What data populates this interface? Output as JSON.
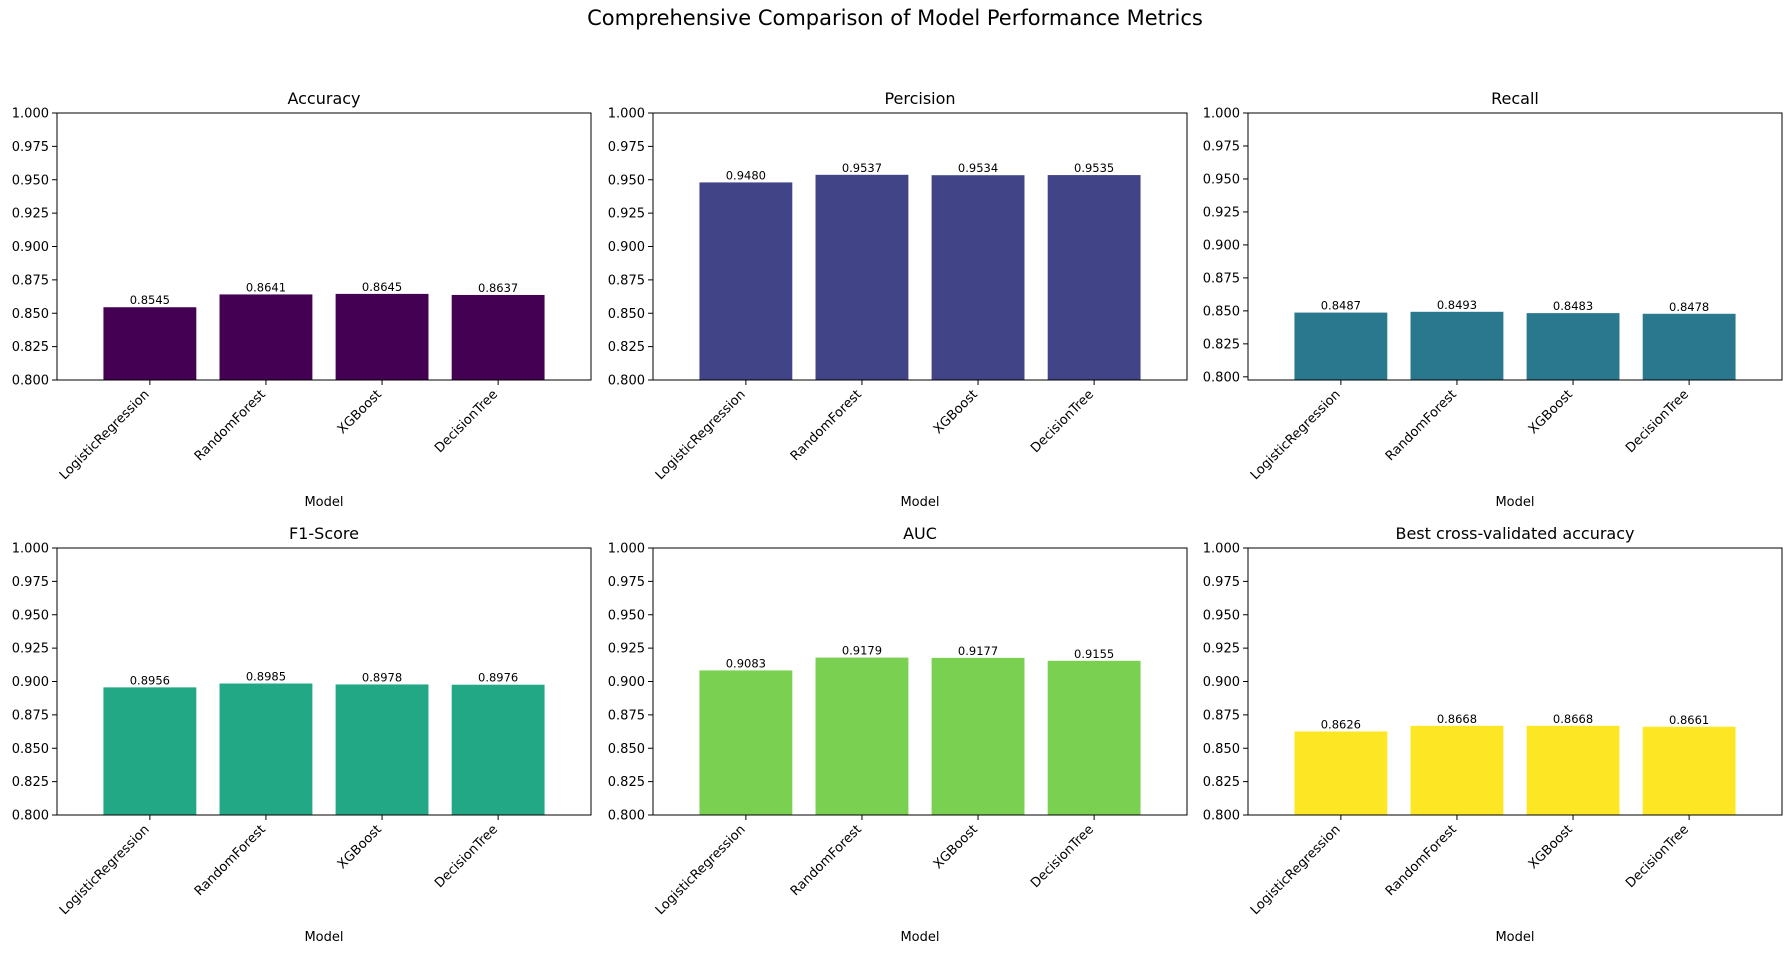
{
  "figure": {
    "title": "Comprehensive Comparison of Model Performance Metrics"
  },
  "chart_data": [
    {
      "type": "bar",
      "title": "Accuracy",
      "xlabel": "Model",
      "ylabel": "",
      "categories": [
        "LogisticRegression",
        "RandomForest",
        "XGBoost",
        "DecisionTree"
      ],
      "values": [
        0.8545,
        0.8641,
        0.8645,
        0.8637
      ],
      "value_labels": [
        "0.8545",
        "0.8641",
        "0.8645",
        "0.8637"
      ],
      "ylim": [
        0.8,
        1.0
      ],
      "yticks": [
        0.8,
        0.825,
        0.85,
        0.875,
        0.9,
        0.925,
        0.95,
        0.975,
        1.0
      ],
      "ytick_labels": [
        "0.800",
        "0.825",
        "0.850",
        "0.875",
        "0.900",
        "0.925",
        "0.950",
        "0.975",
        "1.000"
      ],
      "color": "#440154",
      "grid": false
    },
    {
      "type": "bar",
      "title": "Percision",
      "xlabel": "Model",
      "ylabel": "",
      "categories": [
        "LogisticRegression",
        "RandomForest",
        "XGBoost",
        "DecisionTree"
      ],
      "values": [
        0.948,
        0.9537,
        0.9534,
        0.9535
      ],
      "value_labels": [
        "0.9480",
        "0.9537",
        "0.9534",
        "0.9535"
      ],
      "ylim": [
        0.8,
        1.0
      ],
      "yticks": [
        0.8,
        0.825,
        0.85,
        0.875,
        0.9,
        0.925,
        0.95,
        0.975,
        1.0
      ],
      "ytick_labels": [
        "0.800",
        "0.825",
        "0.850",
        "0.875",
        "0.900",
        "0.925",
        "0.950",
        "0.975",
        "1.000"
      ],
      "color": "#414487",
      "grid": false
    },
    {
      "type": "bar",
      "title": "Recall",
      "xlabel": "Model",
      "ylabel": "",
      "categories": [
        "LogisticRegression",
        "RandomForest",
        "XGBoost",
        "DecisionTree"
      ],
      "values": [
        0.8487,
        0.8493,
        0.8483,
        0.8478
      ],
      "value_labels": [
        "0.8487",
        "0.8493",
        "0.8483",
        "0.8478"
      ],
      "ylim": [
        0.7976,
        1.0
      ],
      "yticks": [
        0.8,
        0.825,
        0.85,
        0.875,
        0.9,
        0.925,
        0.95,
        0.975,
        1.0
      ],
      "ytick_labels": [
        "0.800",
        "0.825",
        "0.850",
        "0.875",
        "0.900",
        "0.925",
        "0.950",
        "0.975",
        "1.000"
      ],
      "color": "#2a788e",
      "grid": false
    },
    {
      "type": "bar",
      "title": "F1-Score",
      "xlabel": "Model",
      "ylabel": "",
      "categories": [
        "LogisticRegression",
        "RandomForest",
        "XGBoost",
        "DecisionTree"
      ],
      "values": [
        0.8956,
        0.8985,
        0.8978,
        0.8976
      ],
      "value_labels": [
        "0.8956",
        "0.8985",
        "0.8978",
        "0.8976"
      ],
      "ylim": [
        0.8,
        1.0
      ],
      "yticks": [
        0.8,
        0.825,
        0.85,
        0.875,
        0.9,
        0.925,
        0.95,
        0.975,
        1.0
      ],
      "ytick_labels": [
        "0.800",
        "0.825",
        "0.850",
        "0.875",
        "0.900",
        "0.925",
        "0.950",
        "0.975",
        "1.000"
      ],
      "color": "#22a884",
      "grid": false
    },
    {
      "type": "bar",
      "title": "AUC",
      "xlabel": "Model",
      "ylabel": "",
      "categories": [
        "LogisticRegression",
        "RandomForest",
        "XGBoost",
        "DecisionTree"
      ],
      "values": [
        0.9083,
        0.9179,
        0.9177,
        0.9155
      ],
      "value_labels": [
        "0.9083",
        "0.9179",
        "0.9177",
        "0.9155"
      ],
      "ylim": [
        0.8,
        1.0
      ],
      "yticks": [
        0.8,
        0.825,
        0.85,
        0.875,
        0.9,
        0.925,
        0.95,
        0.975,
        1.0
      ],
      "ytick_labels": [
        "0.800",
        "0.825",
        "0.850",
        "0.875",
        "0.900",
        "0.925",
        "0.950",
        "0.975",
        "1.000"
      ],
      "color": "#7ad151",
      "grid": false
    },
    {
      "type": "bar",
      "title": "Best cross-validated accuracy",
      "xlabel": "Model",
      "ylabel": "",
      "categories": [
        "LogisticRegression",
        "RandomForest",
        "XGBoost",
        "DecisionTree"
      ],
      "values": [
        0.8626,
        0.8668,
        0.8668,
        0.8661
      ],
      "value_labels": [
        "0.8626",
        "0.8668",
        "0.8668",
        "0.8661"
      ],
      "ylim": [
        0.8,
        1.0
      ],
      "yticks": [
        0.8,
        0.825,
        0.85,
        0.875,
        0.9,
        0.925,
        0.95,
        0.975,
        1.0
      ],
      "ytick_labels": [
        "0.800",
        "0.825",
        "0.850",
        "0.875",
        "0.900",
        "0.925",
        "0.950",
        "0.975",
        "1.000"
      ],
      "color": "#fde725",
      "grid": false
    }
  ]
}
